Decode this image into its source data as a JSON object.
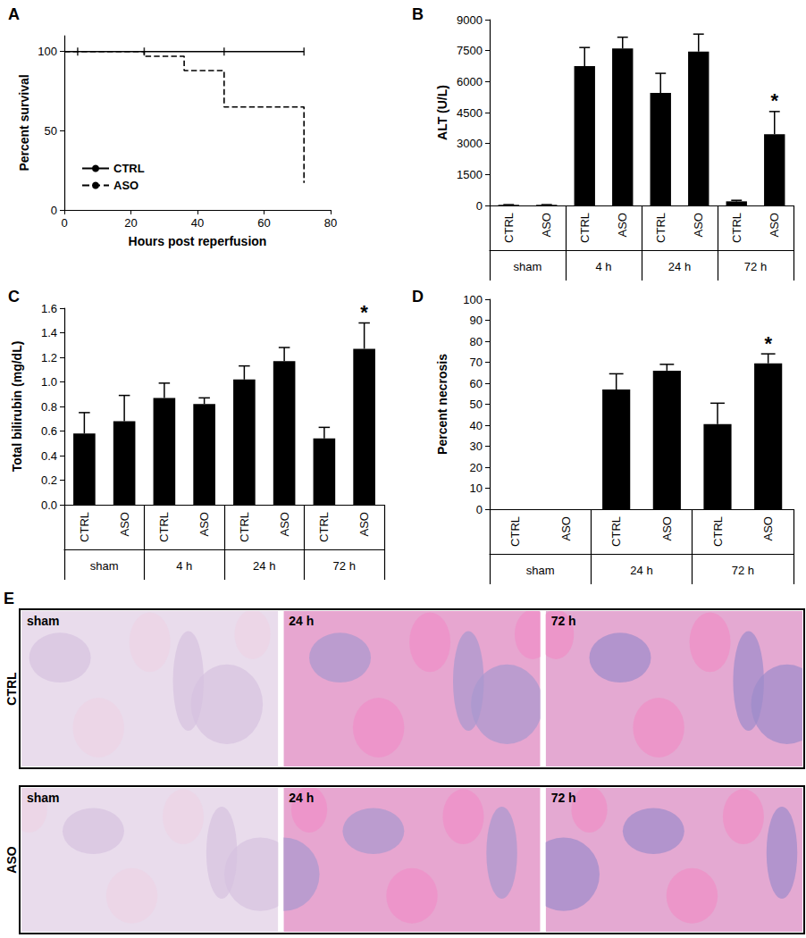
{
  "chart_data": [
    {
      "type": "step",
      "title": "A",
      "x_label": "Hours post reperfusion",
      "y_label": "Percent survival",
      "xlim": [
        0,
        80
      ],
      "xticks": [
        0,
        20,
        40,
        60,
        80
      ],
      "ylim": [
        0,
        110
      ],
      "yticks": [
        0,
        50,
        100
      ],
      "grid": false,
      "legend": "lower left",
      "series": [
        {
          "name": "CTRL",
          "color": "#000000",
          "line_style": "solid",
          "x": [
            0,
            72
          ],
          "values": [
            100,
            100
          ],
          "censored": [
            4,
            24,
            48,
            72
          ]
        },
        {
          "name": "ASO",
          "color": "#000000",
          "line_style": "dashed",
          "x": [
            0,
            24,
            36,
            48,
            72
          ],
          "values": [
            100,
            97,
            88,
            65,
            17
          ]
        }
      ]
    },
    {
      "type": "bar",
      "title": "B",
      "y_label": "ALT (U/L)",
      "categories": [
        "CTRL",
        "ASO",
        "CTRL",
        "ASO",
        "CTRL",
        "ASO",
        "CTRL",
        "ASO"
      ],
      "groups": [
        "sham",
        "4 h",
        "24 h",
        "72 h"
      ],
      "ylim": [
        0,
        9000
      ],
      "yticks": [
        0,
        1500,
        3000,
        4500,
        6000,
        7500,
        9000
      ],
      "grid": false,
      "color": "#000000",
      "values": [
        30,
        30,
        6750,
        7600,
        5450,
        7450,
        200,
        3450
      ],
      "errors": [
        10,
        10,
        900,
        550,
        950,
        850,
        50,
        1100
      ],
      "annotations": [
        {
          "index": 7,
          "text": "*"
        }
      ]
    },
    {
      "type": "bar",
      "title": "C",
      "y_label": "Total bilirubin (mg/dL)",
      "categories": [
        "CTRL",
        "ASO",
        "CTRL",
        "ASO",
        "CTRL",
        "ASO",
        "CTRL",
        "ASO"
      ],
      "groups": [
        "sham",
        "4 h",
        "24 h",
        "72 h"
      ],
      "ylim": [
        0,
        1.6
      ],
      "yticks": [
        {
          "value": 0,
          "label": "0.0"
        },
        0.2,
        0.4,
        0.6,
        0.8,
        {
          "value": 1,
          "label": "1.0"
        },
        1.2,
        1.4,
        1.6
      ],
      "grid": false,
      "color": "#000000",
      "values": [
        0.58,
        0.68,
        0.87,
        0.82,
        1.02,
        1.17,
        0.54,
        1.27
      ],
      "errors": [
        0.17,
        0.21,
        0.12,
        0.05,
        0.11,
        0.11,
        0.09,
        0.21
      ],
      "annotations": [
        {
          "index": 7,
          "text": "*"
        }
      ]
    },
    {
      "type": "bar",
      "title": "D",
      "y_label": "Percent necrosis",
      "categories": [
        "CTRL",
        "ASO",
        "CTRL",
        "ASO",
        "CTRL",
        "ASO"
      ],
      "groups": [
        "sham",
        "24 h",
        "72 h"
      ],
      "ylim": [
        0,
        100
      ],
      "yticks": [
        0,
        10,
        20,
        30,
        40,
        50,
        60,
        70,
        80,
        90,
        100
      ],
      "grid": false,
      "color": "#000000",
      "values": [
        0,
        0,
        57,
        66,
        40.5,
        69.5
      ],
      "errors": [
        0,
        0,
        7.5,
        3,
        10,
        4.5
      ],
      "annotations": [
        {
          "index": 5,
          "text": "*"
        }
      ]
    }
  ],
  "histology": {
    "title": "E",
    "rows": [
      "CTRL",
      "ASO"
    ],
    "columns": [
      "sham",
      "24 h",
      "72 h"
    ]
  }
}
